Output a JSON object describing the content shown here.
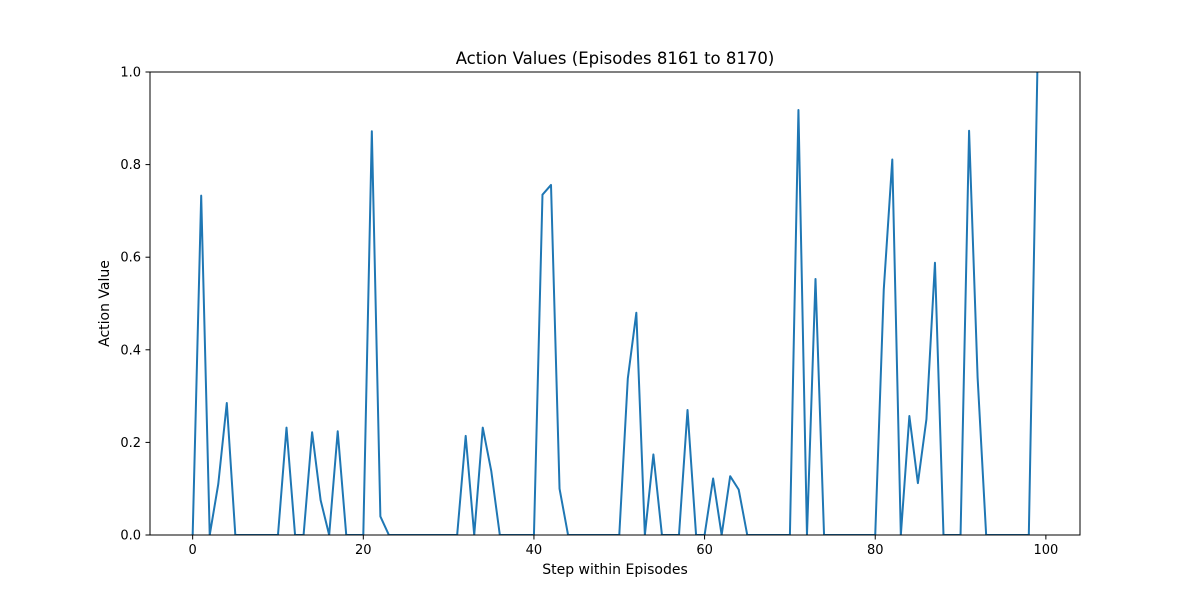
{
  "chart_data": {
    "type": "line",
    "title": "Action Values (Episodes 8161 to 8170)",
    "xlabel": "Step within Episodes",
    "ylabel": "Action Value",
    "xlim": [
      -5,
      104
    ],
    "ylim": [
      0,
      1
    ],
    "xticks": [
      0,
      20,
      40,
      60,
      80,
      100
    ],
    "xtick_labels": [
      "0",
      "20",
      "40",
      "60",
      "80",
      "100"
    ],
    "yticks": [
      0,
      0.2,
      0.4,
      0.6,
      0.8,
      1.0
    ],
    "ytick_labels": [
      "0.0",
      "0.2",
      "0.4",
      "0.6",
      "0.8",
      "1.0"
    ],
    "grid": false,
    "line_color": "#1f77b4",
    "series": [
      {
        "x": [
          0,
          1,
          2,
          3,
          4,
          5,
          6,
          7,
          8,
          9,
          10,
          11,
          12,
          13,
          14,
          15,
          16,
          17,
          18,
          19,
          20,
          21,
          22,
          23,
          24,
          25,
          26,
          27,
          28,
          29,
          30,
          31,
          32,
          33,
          34,
          35,
          36,
          37,
          38,
          39,
          40,
          41,
          42,
          43,
          44,
          45,
          46,
          47,
          48,
          49,
          50,
          51,
          52,
          53,
          54,
          55,
          56,
          57,
          58,
          59,
          60,
          61,
          62,
          63,
          64,
          65,
          66,
          67,
          68,
          69,
          70,
          71,
          72,
          73,
          74,
          75,
          76,
          77,
          78,
          79,
          80,
          81,
          82,
          83,
          84,
          85,
          86,
          87,
          88,
          89,
          90,
          91,
          92,
          93,
          94,
          95,
          96,
          97,
          98,
          99
        ],
        "y": [
          0,
          0.733,
          0,
          0.11,
          0.285,
          0,
          0,
          0,
          0,
          0,
          0,
          0.232,
          0,
          0,
          0.222,
          0.075,
          0,
          0.224,
          0,
          0,
          0,
          0.872,
          0.04,
          0,
          0,
          0,
          0,
          0,
          0,
          0,
          0,
          0,
          0.214,
          0,
          0.232,
          0.138,
          0,
          0,
          0,
          0,
          0,
          0.735,
          0.756,
          0.1,
          0,
          0,
          0,
          0,
          0,
          0,
          0,
          0.338,
          0.48,
          0,
          0.174,
          0,
          0,
          0,
          0.27,
          0,
          0,
          0.122,
          0,
          0.127,
          0.098,
          0,
          0,
          0,
          0,
          0,
          0,
          0.918,
          0,
          0.553,
          0,
          0,
          0,
          0,
          0,
          0,
          0,
          0.53,
          0.811,
          0,
          0.257,
          0.112,
          0.25,
          0.588,
          0,
          0,
          0,
          0.873,
          0.34,
          0,
          0,
          0,
          0,
          0,
          0,
          1.0
        ]
      }
    ]
  }
}
